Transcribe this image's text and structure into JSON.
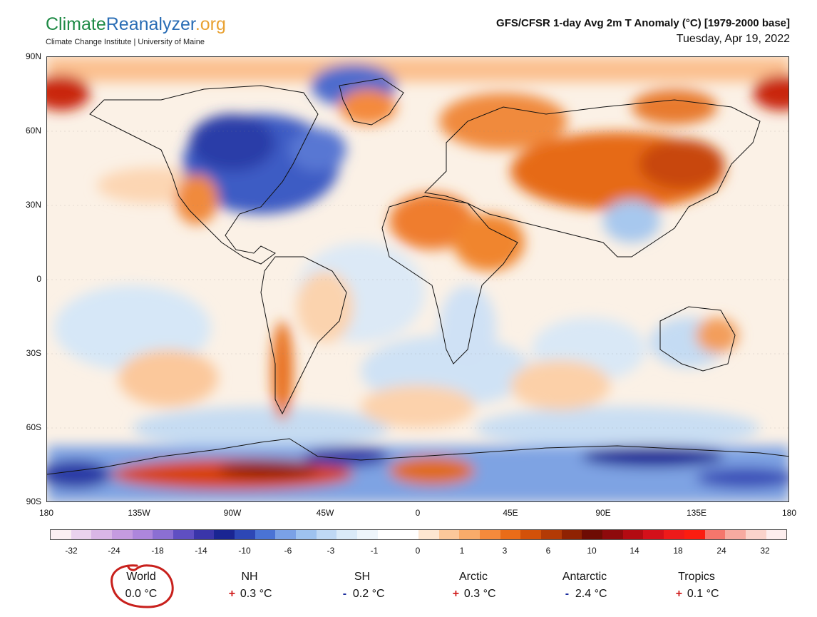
{
  "header": {
    "logo_part1": "Climate",
    "logo_part2": "Reanalyzer",
    "logo_part3": ".org",
    "logo_subtitle": "Climate Change Institute | University of Maine",
    "title": "GFS/CFSR 1-day Avg 2m T Anomaly (°C) [1979-2000 base]",
    "date": "Tuesday, Apr 19, 2022"
  },
  "map": {
    "lat_labels": [
      "90N",
      "60N",
      "30N",
      "0",
      "30S",
      "60S",
      "90S"
    ],
    "lon_labels": [
      "180",
      "135W",
      "90W",
      "45W",
      "0",
      "45E",
      "90E",
      "135E",
      "180"
    ]
  },
  "colorbar": {
    "colors": [
      "#fbeff2",
      "#ead2ee",
      "#d9b6e6",
      "#c59be0",
      "#ad86dc",
      "#8b6fd3",
      "#5f4fc2",
      "#3a35a9",
      "#1a2592",
      "#2d47b5",
      "#4a73d5",
      "#7aa1e6",
      "#9ec2ef",
      "#bfd8f4",
      "#daeaf8",
      "#eef5fb",
      "#ffffff",
      "#ffffff",
      "#fde6d1",
      "#fcc89a",
      "#f9ab6a",
      "#f48a3c",
      "#ea6c18",
      "#d35109",
      "#b33a05",
      "#8f2202",
      "#6e0c04",
      "#8e0a0c",
      "#b30b12",
      "#d4101a",
      "#ee1a1a",
      "#fb1d10",
      "#f5766c",
      "#f7aaa0",
      "#fad3cb",
      "#fdeeee"
    ],
    "labels": [
      "-32",
      "-24",
      "-18",
      "-14",
      "-10",
      "-6",
      "-3",
      "-1",
      "0",
      "1",
      "3",
      "6",
      "10",
      "14",
      "18",
      "24",
      "32"
    ]
  },
  "stats": [
    {
      "name": "World",
      "sign": "",
      "value": "0.0 °C"
    },
    {
      "name": "NH",
      "sign": "+",
      "value": "0.3 °C"
    },
    {
      "name": "SH",
      "sign": "-",
      "value": "0.2 °C"
    },
    {
      "name": "Arctic",
      "sign": "+",
      "value": "0.3 °C"
    },
    {
      "name": "Antarctic",
      "sign": "-",
      "value": "2.4 °C"
    },
    {
      "name": "Tropics",
      "sign": "+",
      "value": "0.1 °C"
    }
  ],
  "annotation_color": "#c8201c"
}
